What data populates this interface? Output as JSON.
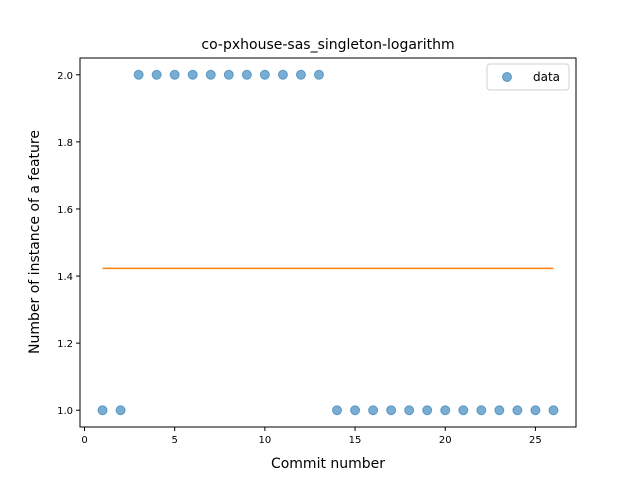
{
  "chart_data": {
    "type": "scatter",
    "title": "co-pxhouse-sas_singleton-logarithm",
    "xlabel": "Commit number",
    "ylabel": "Number of instance of a feature",
    "xlim": [
      -0.25,
      27.25
    ],
    "ylim": [
      0.95,
      2.05
    ],
    "xticks": [
      0,
      5,
      10,
      15,
      20,
      25
    ],
    "yticks": [
      1.0,
      1.2,
      1.4,
      1.6,
      1.8,
      2.0
    ],
    "xtick_labels": [
      "0",
      "5",
      "10",
      "15",
      "20",
      "25"
    ],
    "ytick_labels": [
      "1.0",
      "1.2",
      "1.4",
      "1.6",
      "1.8",
      "2.0"
    ],
    "legend_position": "top-right",
    "series": [
      {
        "name": "data",
        "kind": "scatter",
        "color": "#1f77b4",
        "x": [
          1,
          2,
          3,
          4,
          5,
          6,
          7,
          8,
          9,
          10,
          11,
          12,
          13,
          14,
          15,
          16,
          17,
          18,
          19,
          20,
          21,
          22,
          23,
          24,
          25,
          26
        ],
        "y": [
          1,
          1,
          2,
          2,
          2,
          2,
          2,
          2,
          2,
          2,
          2,
          2,
          2,
          1,
          1,
          1,
          1,
          1,
          1,
          1,
          1,
          1,
          1,
          1,
          1,
          1
        ]
      },
      {
        "kind": "line",
        "color": "#ff7f0e",
        "x": [
          1,
          26
        ],
        "y": [
          1.423,
          1.423
        ]
      }
    ]
  }
}
